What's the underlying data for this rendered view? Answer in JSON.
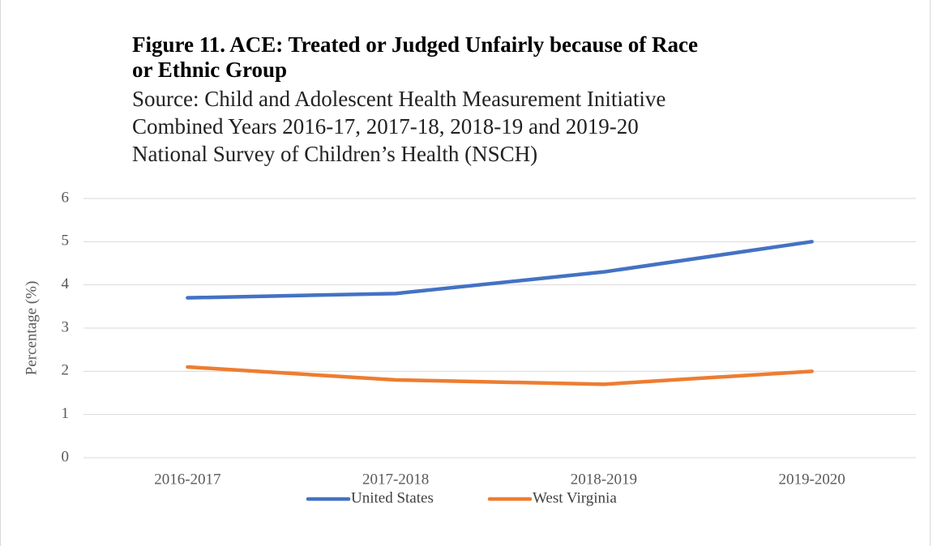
{
  "chart_data": {
    "type": "line",
    "title": "Figure 11. ACE: Treated or Judged Unfairly because of Race or Ethnic Group",
    "subtitle": [
      "Source: Child and Adolescent Health Measurement Initiative",
      "Combined Years 2016-17, 2017-18, 2018-19 and 2019-20",
      "National Survey of Children’s Health (NSCH)"
    ],
    "y_label": "Percentage (%)",
    "categories": [
      "2016-2017",
      "2017-2018",
      "2018-2019",
      "2019-2020"
    ],
    "series": [
      {
        "name": "United States",
        "color": "#4472c4",
        "values": [
          3.7,
          3.8,
          4.3,
          5.0
        ]
      },
      {
        "name": "West Virginia",
        "color": "#ed7d31",
        "values": [
          2.1,
          1.8,
          1.7,
          2.0
        ]
      }
    ],
    "ylim": [
      0,
      6
    ],
    "yticks": [
      0,
      1,
      2,
      3,
      4,
      5,
      6
    ],
    "grid": true,
    "legend": "bottom"
  }
}
